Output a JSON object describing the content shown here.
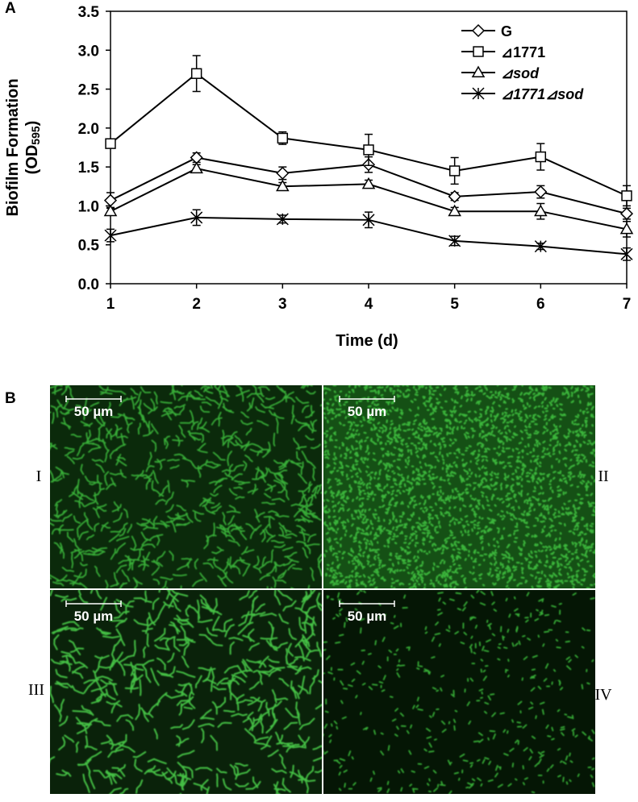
{
  "chart_data": {
    "type": "line",
    "panel_label": "A",
    "x_label": "Time (d)",
    "y_label": "Biofilm Formation",
    "y_unit": [
      "(OD",
      "595",
      ")"
    ],
    "x": [
      1,
      2,
      3,
      4,
      5,
      6,
      7
    ],
    "xlim": [
      1,
      7
    ],
    "xticks": [
      1,
      2,
      3,
      4,
      5,
      6,
      7
    ],
    "ylim": [
      0,
      3.5
    ],
    "yticks": [
      {
        "value": 0,
        "label": "0.0"
      },
      0.5,
      {
        "value": 1,
        "label": "1.0"
      },
      1.5,
      {
        "value": 2,
        "label": "2.0"
      },
      2.5,
      {
        "value": 3,
        "label": "3.0"
      },
      3.5
    ],
    "legend": "upper right",
    "series": [
      {
        "name": "G",
        "marker": "diamond",
        "italic": false,
        "color": "#000000",
        "values": [
          1.07,
          1.62,
          1.42,
          1.53,
          1.12,
          1.18,
          0.9
        ],
        "errors": [
          0.1,
          0.06,
          0.08,
          0.1,
          0.05,
          0.08,
          0.07
        ]
      },
      {
        "name": "⊿1771",
        "marker": "square",
        "italic": false,
        "color": "#000000",
        "values": [
          1.8,
          2.7,
          1.87,
          1.72,
          1.45,
          1.63,
          1.13
        ],
        "errors": [
          0.05,
          0.23,
          0.08,
          0.2,
          0.17,
          0.17,
          0.13
        ]
      },
      {
        "name": "⊿sod",
        "marker": "triangle",
        "italic": true,
        "color": "#000000",
        "values": [
          0.93,
          1.48,
          1.25,
          1.28,
          0.93,
          0.93,
          0.7
        ],
        "errors": [
          0.05,
          0.05,
          0.05,
          0.05,
          0.05,
          0.1,
          0.1
        ]
      },
      {
        "name": "⊿1771⊿sod",
        "marker": "star",
        "italic": true,
        "color": "#000000",
        "values": [
          0.62,
          0.85,
          0.83,
          0.82,
          0.55,
          0.48,
          0.38
        ],
        "errors": [
          0.08,
          0.1,
          0.05,
          0.1,
          0.06,
          0.04,
          0.08
        ]
      }
    ]
  },
  "panel_b": {
    "label": "B",
    "images": [
      {
        "label": "I",
        "scale_bar": "50 µm"
      },
      {
        "label": "II",
        "scale_bar": "50 µm"
      },
      {
        "label": "III",
        "scale_bar": "50 µm"
      },
      {
        "label": "IV",
        "scale_bar": "50 µm"
      }
    ]
  }
}
